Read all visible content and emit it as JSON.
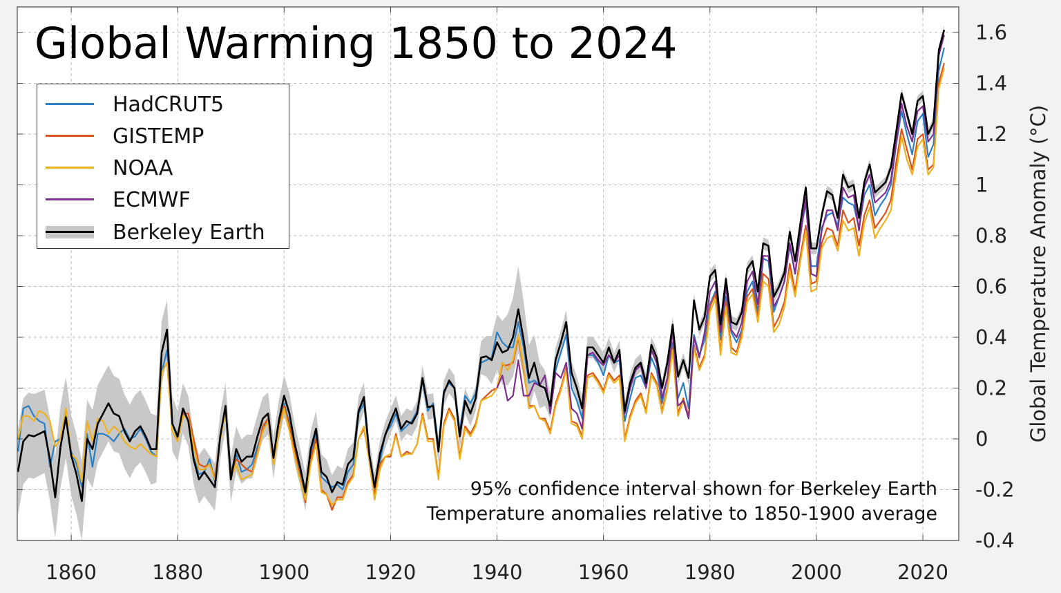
{
  "chart_data": {
    "type": "line",
    "title": "Global Warming 1850 to 2024",
    "xlabel": "",
    "ylabel": "Global Temperature Anomaly (°C)",
    "xlim": [
      1850,
      2026
    ],
    "ylim": [
      -0.4,
      1.7
    ],
    "xticks": [
      1860,
      1880,
      1900,
      1920,
      1940,
      1960,
      1980,
      2000,
      2020
    ],
    "yticks": [
      -0.4,
      -0.2,
      0,
      0.2,
      0.4,
      0.6,
      0.8,
      1,
      1.2,
      1.4,
      1.6
    ],
    "ytick_labels": [
      "-0.4",
      "-0.2",
      "0",
      "0.2",
      "0.4",
      "0.6",
      "0.8",
      "1",
      "1.2",
      "1.4",
      "1.6"
    ],
    "y_axis_side": "right",
    "grid": true,
    "legend_placement": "top-left",
    "annotations": [
      "95% confidence interval shown for Berkeley Earth",
      "Temperature anomalies relative to 1850-1900 average"
    ],
    "series": [
      {
        "name": "HadCRUT5",
        "color": "#2b7fc3",
        "start_year": 1850,
        "values": [
          -0.05,
          0.12,
          0.13,
          0.09,
          0.07,
          0.06,
          -0.11,
          -0.01,
          0.0,
          0.1,
          -0.05,
          -0.1,
          -0.19,
          0.02,
          -0.11,
          0.02,
          0.02,
          0.01,
          -0.01,
          0.02,
          0.04,
          0.0,
          0.01,
          0.04,
          0.0,
          -0.05,
          -0.07,
          0.26,
          0.35,
          0.06,
          0.0,
          0.11,
          0.07,
          -0.07,
          -0.14,
          -0.13,
          -0.08,
          -0.17,
          0.0,
          0.12,
          -0.13,
          -0.06,
          -0.13,
          -0.12,
          -0.1,
          -0.03,
          0.03,
          0.08,
          -0.09,
          0.05,
          0.14,
          0.06,
          -0.03,
          -0.13,
          -0.22,
          -0.07,
          0.02,
          -0.15,
          -0.17,
          -0.19,
          -0.18,
          -0.2,
          -0.13,
          -0.1,
          0.1,
          0.14,
          -0.06,
          -0.2,
          -0.09,
          0.02,
          0.05,
          0.1,
          0.03,
          0.05,
          0.07,
          0.11,
          0.23,
          0.11,
          0.14,
          -0.03,
          0.19,
          0.22,
          0.2,
          0.03,
          0.17,
          0.14,
          0.18,
          0.3,
          0.31,
          0.32,
          0.42,
          0.38,
          0.36,
          0.36,
          0.46,
          0.36,
          0.22,
          0.23,
          0.21,
          0.2,
          0.12,
          0.27,
          0.34,
          0.41,
          0.2,
          0.15,
          0.08,
          0.33,
          0.33,
          0.3,
          0.25,
          0.33,
          0.3,
          0.31,
          0.07,
          0.16,
          0.24,
          0.25,
          0.2,
          0.32,
          0.27,
          0.14,
          0.24,
          0.38,
          0.16,
          0.22,
          0.12,
          0.41,
          0.33,
          0.39,
          0.53,
          0.58,
          0.39,
          0.56,
          0.42,
          0.38,
          0.43,
          0.58,
          0.62,
          0.5,
          0.71,
          0.7,
          0.5,
          0.56,
          0.62,
          0.76,
          0.65,
          0.81,
          0.93,
          0.68,
          0.68,
          0.83,
          0.88,
          0.89,
          0.84,
          0.95,
          0.93,
          0.92,
          0.83,
          0.96,
          1.0,
          0.88,
          0.92,
          0.95,
          1.0,
          1.16,
          1.29,
          1.2,
          1.12,
          1.25,
          1.28,
          1.11,
          1.16,
          1.45,
          1.54
        ]
      },
      {
        "name": "GISTEMP",
        "color": "#d9541a",
        "start_year": 1880,
        "values": [
          0.0,
          0.1,
          0.1,
          0.0,
          -0.1,
          -0.11,
          -0.1,
          -0.15,
          0.0,
          0.12,
          -0.14,
          -0.08,
          -0.1,
          -0.12,
          -0.13,
          -0.05,
          0.05,
          0.08,
          -0.08,
          0.05,
          0.13,
          0.05,
          -0.05,
          -0.15,
          -0.25,
          -0.08,
          0.0,
          -0.2,
          -0.22,
          -0.28,
          -0.23,
          -0.23,
          -0.17,
          -0.14,
          0.0,
          0.04,
          -0.08,
          -0.22,
          -0.1,
          -0.07,
          -0.07,
          0.02,
          -0.07,
          -0.05,
          -0.06,
          -0.02,
          0.1,
          0.0,
          0.0,
          -0.15,
          0.06,
          0.12,
          0.08,
          -0.07,
          0.05,
          0.02,
          0.06,
          0.15,
          0.17,
          0.19,
          0.2,
          0.29,
          0.29,
          0.3,
          0.4,
          0.27,
          0.13,
          0.13,
          0.08,
          0.08,
          0.03,
          0.14,
          0.2,
          0.28,
          0.07,
          0.06,
          0.01,
          0.25,
          0.26,
          0.23,
          0.19,
          0.26,
          0.23,
          0.25,
          0.0,
          0.09,
          0.15,
          0.18,
          0.11,
          0.26,
          0.22,
          0.11,
          0.2,
          0.36,
          0.1,
          0.16,
          0.09,
          0.37,
          0.28,
          0.33,
          0.52,
          0.57,
          0.34,
          0.54,
          0.36,
          0.34,
          0.42,
          0.56,
          0.59,
          0.48,
          0.65,
          0.63,
          0.44,
          0.48,
          0.54,
          0.69,
          0.58,
          0.72,
          0.84,
          0.61,
          0.62,
          0.77,
          0.83,
          0.82,
          0.76,
          0.9,
          0.85,
          0.87,
          0.76,
          0.88,
          0.94,
          0.83,
          0.86,
          0.89,
          0.94,
          1.09,
          1.22,
          1.14,
          1.06,
          1.18,
          1.2,
          1.06,
          1.08,
          1.4,
          1.48
        ]
      },
      {
        "name": "NOAA",
        "color": "#edb120",
        "start_year": 1850,
        "values": [
          0.0,
          0.09,
          0.09,
          0.07,
          0.11,
          0.1,
          0.07,
          -0.03,
          0.0,
          0.12,
          -0.06,
          -0.08,
          -0.17,
          0.07,
          -0.01,
          0.08,
          0.07,
          0.02,
          0.05,
          0.03,
          -0.01,
          -0.03,
          -0.04,
          -0.02,
          -0.04,
          -0.06,
          -0.07,
          0.26,
          0.3,
          0.03,
          -0.01,
          0.09,
          0.08,
          -0.03,
          -0.12,
          -0.12,
          -0.1,
          -0.16,
          0.0,
          0.11,
          -0.15,
          -0.1,
          -0.16,
          -0.15,
          -0.14,
          -0.06,
          0.03,
          0.07,
          -0.1,
          0.03,
          0.12,
          0.03,
          -0.07,
          -0.16,
          -0.24,
          -0.1,
          -0.02,
          -0.21,
          -0.22,
          -0.26,
          -0.24,
          -0.24,
          -0.18,
          -0.15,
          0.0,
          0.05,
          -0.09,
          -0.24,
          -0.12,
          -0.07,
          -0.06,
          0.01,
          -0.07,
          -0.06,
          -0.06,
          -0.02,
          0.09,
          -0.01,
          -0.01,
          -0.16,
          0.05,
          0.11,
          0.07,
          -0.08,
          0.04,
          0.01,
          0.05,
          0.15,
          0.16,
          0.17,
          0.2,
          0.3,
          0.27,
          0.31,
          0.41,
          0.28,
          0.12,
          0.13,
          0.08,
          0.07,
          0.02,
          0.13,
          0.19,
          0.27,
          0.06,
          0.05,
          0.0,
          0.24,
          0.25,
          0.22,
          0.18,
          0.25,
          0.22,
          0.24,
          -0.01,
          0.08,
          0.14,
          0.17,
          0.1,
          0.25,
          0.21,
          0.1,
          0.19,
          0.35,
          0.09,
          0.15,
          0.08,
          0.36,
          0.27,
          0.32,
          0.5,
          0.55,
          0.33,
          0.52,
          0.34,
          0.33,
          0.4,
          0.54,
          0.57,
          0.46,
          0.62,
          0.6,
          0.42,
          0.45,
          0.52,
          0.66,
          0.56,
          0.7,
          0.82,
          0.58,
          0.59,
          0.75,
          0.79,
          0.8,
          0.74,
          0.86,
          0.82,
          0.83,
          0.72,
          0.85,
          0.91,
          0.79,
          0.83,
          0.86,
          0.9,
          1.05,
          1.19,
          1.1,
          1.04,
          1.15,
          1.18,
          1.04,
          1.07,
          1.38,
          1.46
        ]
      },
      {
        "name": "ECMWF",
        "color": "#7e2f8e",
        "start_year": 1940,
        "values": [
          0.2,
          0.25,
          0.15,
          0.17,
          0.31,
          0.17,
          0.17,
          0.22,
          0.21,
          0.25,
          0.1,
          0.26,
          0.24,
          0.3,
          0.12,
          0.1,
          0.04,
          0.33,
          0.34,
          0.31,
          0.29,
          0.33,
          0.3,
          0.33,
          0.1,
          0.2,
          0.27,
          0.29,
          0.2,
          0.35,
          0.3,
          0.16,
          0.24,
          0.43,
          0.13,
          0.15,
          0.08,
          0.4,
          0.32,
          0.42,
          0.58,
          0.62,
          0.42,
          0.6,
          0.43,
          0.4,
          0.46,
          0.62,
          0.66,
          0.53,
          0.72,
          0.72,
          0.52,
          0.56,
          0.62,
          0.77,
          0.65,
          0.8,
          0.95,
          0.65,
          0.64,
          0.82,
          0.9,
          0.9,
          0.82,
          0.99,
          0.95,
          0.96,
          0.82,
          0.99,
          1.04,
          0.93,
          0.95,
          0.97,
          1.02,
          1.17,
          1.32,
          1.23,
          1.17,
          1.29,
          1.31,
          1.17,
          1.2,
          1.51,
          1.59
        ]
      },
      {
        "name": "Berkeley Earth",
        "color": "#000000",
        "band_color": "#c8c8c8",
        "start_year": 1850,
        "values": [
          -0.13,
          -0.01,
          0.015,
          0.01,
          0.02,
          0.03,
          -0.08,
          -0.23,
          -0.03,
          0.085,
          -0.065,
          -0.14,
          -0.245,
          0.0,
          -0.04,
          0.06,
          0.1,
          0.14,
          0.1,
          0.09,
          0.03,
          -0.01,
          0.03,
          0.05,
          0.01,
          -0.04,
          -0.04,
          0.34,
          0.43,
          0.06,
          0.01,
          0.12,
          0.07,
          -0.08,
          -0.16,
          -0.13,
          -0.16,
          -0.19,
          0.01,
          0.13,
          -0.16,
          -0.04,
          -0.09,
          -0.07,
          -0.07,
          0.01,
          0.08,
          0.1,
          -0.075,
          0.07,
          0.17,
          0.1,
          -0.02,
          -0.11,
          -0.21,
          -0.04,
          0.04,
          -0.13,
          -0.15,
          -0.21,
          -0.17,
          -0.18,
          -0.1,
          -0.075,
          0.11,
          0.165,
          -0.06,
          -0.19,
          -0.06,
          0.015,
          0.07,
          0.12,
          0.04,
          0.07,
          0.06,
          0.1,
          0.24,
          0.125,
          0.13,
          -0.05,
          0.18,
          0.23,
          0.2,
          0.01,
          0.15,
          0.1,
          0.16,
          0.32,
          0.325,
          0.31,
          0.38,
          0.34,
          0.35,
          0.4,
          0.51,
          0.39,
          0.24,
          0.3,
          0.21,
          0.2,
          0.13,
          0.31,
          0.38,
          0.46,
          0.26,
          0.2,
          0.12,
          0.36,
          0.36,
          0.33,
          0.3,
          0.36,
          0.3,
          0.35,
          0.11,
          0.22,
          0.28,
          0.3,
          0.22,
          0.37,
          0.32,
          0.2,
          0.3,
          0.45,
          0.245,
          0.31,
          0.24,
          0.545,
          0.43,
          0.48,
          0.64,
          0.665,
          0.45,
          0.63,
          0.46,
          0.45,
          0.5,
          0.67,
          0.7,
          0.58,
          0.77,
          0.76,
          0.56,
          0.6,
          0.655,
          0.815,
          0.7,
          0.85,
          0.99,
          0.75,
          0.75,
          0.88,
          0.975,
          0.96,
          0.87,
          1.04,
          0.99,
          1.0,
          0.87,
          1.01,
          1.08,
          0.97,
          0.99,
          1.01,
          1.07,
          1.21,
          1.36,
          1.28,
          1.2,
          1.33,
          1.35,
          1.2,
          1.245,
          1.53,
          1.61
        ],
        "ci95_halfwidth_by_year": [
          [
            1850,
            0.17
          ],
          [
            1875,
            0.14
          ],
          [
            1880,
            0.1
          ],
          [
            1900,
            0.08
          ],
          [
            1920,
            0.05
          ],
          [
            1936,
            0.05
          ],
          [
            1944,
            0.17
          ],
          [
            1950,
            0.05
          ],
          [
            1960,
            0.04
          ],
          [
            1980,
            0.025
          ],
          [
            2024,
            0.02
          ]
        ]
      }
    ]
  }
}
